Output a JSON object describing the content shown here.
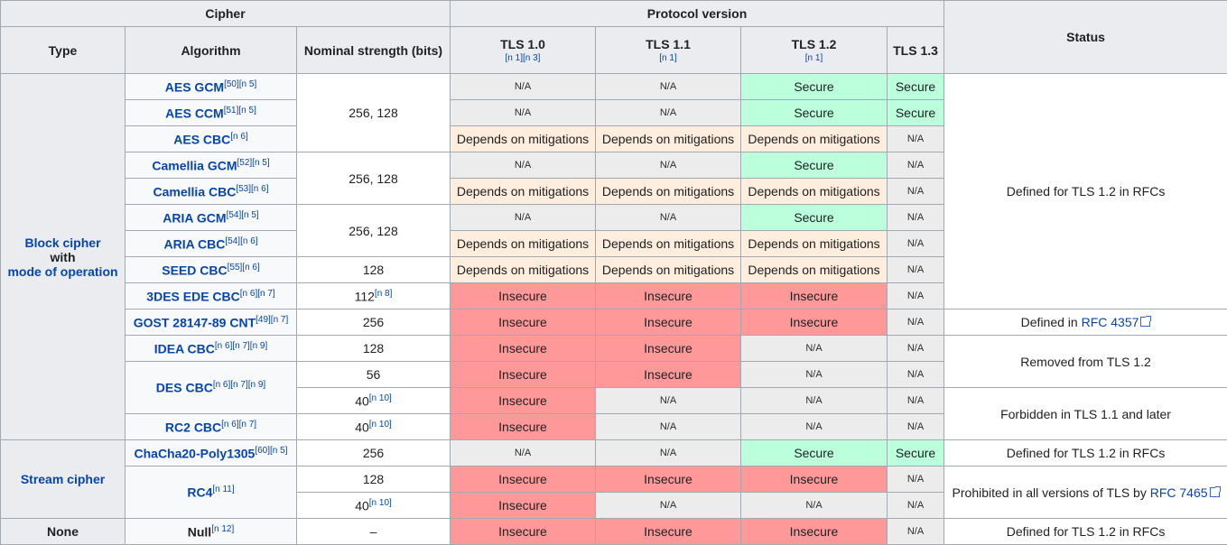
{
  "headers": {
    "cipher": "Cipher",
    "protocol_version": "Protocol version",
    "status": "Status",
    "type": "Type",
    "algorithm": "Algorithm",
    "strength": "Nominal strength (bits)",
    "tls10": "TLS 1.0",
    "tls10_note": "[n 1][n 3]",
    "tls11": "TLS 1.1",
    "tls11_note": "[n 1]",
    "tls12": "TLS 1.2",
    "tls12_note": "[n 1]",
    "tls13": "TLS 1.3"
  },
  "types": {
    "block_line1": "Block cipher",
    "block_line2": "with",
    "block_line3": "mode of operation",
    "stream": "Stream cipher",
    "none": "None"
  },
  "values": {
    "na": "N/A",
    "secure": "Secure",
    "depends": "Depends on mitigations",
    "insecure": "Insecure"
  },
  "rows": [
    {
      "alg": "AES GCM",
      "notes": "[50][n 5]",
      "strength": "256, 128",
      "strength_note": ""
    },
    {
      "alg": "AES CCM",
      "notes": "[51][n 5]"
    },
    {
      "alg": "AES CBC",
      "notes": "[n 6]"
    },
    {
      "alg": "Camellia GCM",
      "notes": "[52][n 5]",
      "strength": "256, 128",
      "strength_note": ""
    },
    {
      "alg": "Camellia CBC",
      "notes": "[53][n 6]"
    },
    {
      "alg": "ARIA GCM",
      "notes": "[54][n 5]",
      "strength": "256, 128",
      "strength_note": ""
    },
    {
      "alg": "ARIA CBC",
      "notes": "[54][n 6]"
    },
    {
      "alg": "SEED CBC",
      "notes": "[55][n 6]",
      "strength": "128",
      "strength_note": ""
    },
    {
      "alg": "3DES EDE CBC",
      "notes": "[n 6][n 7]",
      "strength": "112",
      "strength_note": "[n 8]"
    },
    {
      "alg": "GOST 28147-89 CNT",
      "notes": "[49][n 7]",
      "strength": "256",
      "strength_note": ""
    },
    {
      "alg": "IDEA CBC",
      "notes": "[n 6][n 7][n 9]",
      "strength": "128",
      "strength_note": ""
    },
    {
      "alg": "DES CBC",
      "notes": "[n 6][n 7][n 9]",
      "strength": "56",
      "strength_note": ""
    },
    {
      "alg": "",
      "notes": "",
      "strength": "40",
      "strength_note": "[n 10]"
    },
    {
      "alg": "RC2 CBC",
      "notes": "[n 6][n 7]",
      "strength": "40",
      "strength_note": "[n 10]"
    },
    {
      "alg": "ChaCha20-Poly1305",
      "notes": "[60][n 5]",
      "strength": "256",
      "strength_note": ""
    },
    {
      "alg": "RC4",
      "notes": "[n 11]",
      "strength": "128",
      "strength_note": ""
    },
    {
      "alg": "",
      "notes": "",
      "strength": "40",
      "strength_note": "[n 10]"
    },
    {
      "alg": "Null",
      "notes": "[n 12]",
      "strength": "–",
      "strength_note": ""
    }
  ],
  "statuses": {
    "defined_rfcs": "Defined for TLS 1.2 in RFCs",
    "defined_in": "Defined in ",
    "rfc4357": "RFC 4357",
    "removed": "Removed from TLS 1.2",
    "forbidden": "Forbidden in TLS 1.1 and later",
    "defined_rfcs_chacha": "Defined for TLS 1.2 in RFCs",
    "prohibited": "Prohibited in all versions of TLS by ",
    "rfc7465": "RFC 7465",
    "defined_rfcs_null": "Defined for TLS 1.2 in RFCs"
  },
  "colors": {
    "secure": "#bbffdd",
    "depends": "#ffeedd",
    "insecure": "#ff9999",
    "na": "#ececec",
    "header": "#eaecf0",
    "link": "#0645ad"
  }
}
